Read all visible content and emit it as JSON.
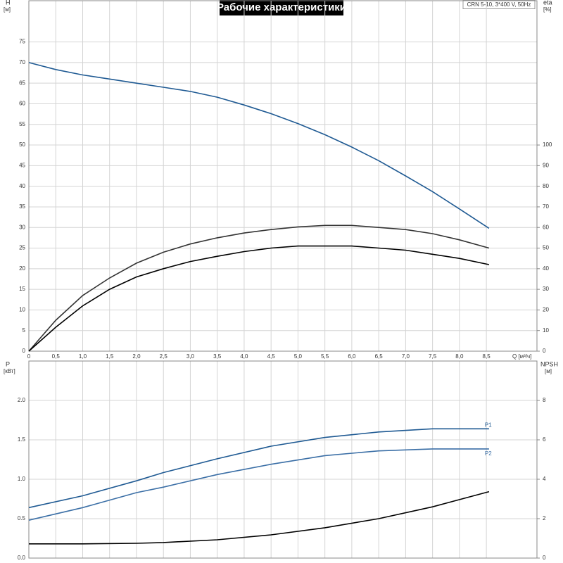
{
  "chart_data": [
    {
      "type": "line",
      "title": "Рабочие характеристики",
      "subtitle": "CRN 5-10, 3*400 V, 50Hz",
      "xlabel": "Q [м³/ч]",
      "ylabel": "H",
      "yunit": "[м]",
      "y2label": "eta",
      "y2unit": "[%]",
      "xlim": [
        0,
        9.44
      ],
      "ylim": [
        0,
        85
      ],
      "y2lim": [
        0,
        170
      ],
      "xticks": [
        0,
        {
          "value": 0.5,
          "label": "0,5"
        },
        {
          "value": 1,
          "label": "1,0"
        },
        {
          "value": 1.5,
          "label": "1,5"
        },
        {
          "value": 2,
          "label": "2,0"
        },
        {
          "value": 2.5,
          "label": "2,5"
        },
        {
          "value": 3,
          "label": "3,0"
        },
        {
          "value": 3.5,
          "label": "3,5"
        },
        {
          "value": 4,
          "label": "4,0"
        },
        {
          "value": 4.5,
          "label": "4,5"
        },
        {
          "value": 5,
          "label": "5,0"
        },
        {
          "value": 5.5,
          "label": "5,5"
        },
        {
          "value": 6,
          "label": "6,0"
        },
        {
          "value": 6.5,
          "label": "6,5"
        },
        {
          "value": 7,
          "label": "7,0"
        },
        {
          "value": 7.5,
          "label": "7,5"
        },
        {
          "value": 8,
          "label": "8,0"
        },
        {
          "value": 8.5,
          "label": "8,5"
        }
      ],
      "yticks": [
        0,
        5,
        10,
        15,
        20,
        25,
        30,
        35,
        40,
        45,
        50,
        55,
        60,
        65,
        70,
        75
      ],
      "y2ticks": [
        0,
        10,
        20,
        30,
        40,
        50,
        60,
        70,
        80,
        90,
        100
      ],
      "x": [
        0,
        0.5,
        1,
        1.5,
        2,
        2.5,
        3,
        3.5,
        4,
        4.5,
        5,
        5.5,
        6,
        6.5,
        7,
        7.5,
        8,
        8.55
      ],
      "series": [
        {
          "color": "#1f5a93",
          "values": [
            70,
            68.3,
            67,
            66,
            65,
            64,
            63,
            61.6,
            59.7,
            57.6,
            55.2,
            52.5,
            49.5,
            46.2,
            42.5,
            38.7,
            34.5,
            29.8
          ]
        },
        {
          "color": "#333333",
          "axis": "y2",
          "values": [
            0,
            15,
            27,
            35.5,
            42.7,
            48,
            52,
            55,
            57.3,
            59,
            60.3,
            61,
            61,
            60,
            59,
            57,
            54,
            50
          ]
        },
        {
          "color": "#000000",
          "axis": "y2",
          "values": [
            0,
            11.6,
            22,
            30,
            36,
            40,
            43.5,
            46,
            48.3,
            50,
            51,
            51,
            51,
            50,
            49,
            47,
            45,
            42
          ]
        }
      ]
    },
    {
      "type": "line",
      "ylabel": "P",
      "yunit": "[кВт]",
      "y2label": "NPSH",
      "y2unit": "[м]",
      "xlim": [
        0,
        9.44
      ],
      "ylim": [
        0,
        2.5
      ],
      "y2lim": [
        0,
        10
      ],
      "yticks": [
        {
          "value": 0,
          "label": "0.0"
        },
        0.5,
        {
          "value": 1,
          "label": "1.0"
        },
        1.5,
        {
          "value": 2,
          "label": "2.0"
        }
      ],
      "y2ticks": [
        0,
        2,
        4,
        6,
        8
      ],
      "x": [
        0,
        1,
        2,
        2.5,
        3.5,
        4.5,
        5.5,
        6.5,
        7.5,
        8.55
      ],
      "series": [
        {
          "name": "P1",
          "color": "#1f5a93",
          "values": [
            0.64,
            0.79,
            0.98,
            1.085,
            1.26,
            1.42,
            1.53,
            1.6,
            1.64,
            1.64
          ]
        },
        {
          "name": "P2",
          "color": "#3b6fa6",
          "values": [
            0.48,
            0.64,
            0.83,
            0.9,
            1.06,
            1.19,
            1.3,
            1.36,
            1.385,
            1.385
          ]
        },
        {
          "color": "#000000",
          "axis": "y2",
          "values": [
            0.72,
            0.72,
            0.75,
            0.79,
            0.93,
            1.18,
            1.54,
            2.0,
            2.6,
            3.37
          ]
        }
      ]
    }
  ]
}
